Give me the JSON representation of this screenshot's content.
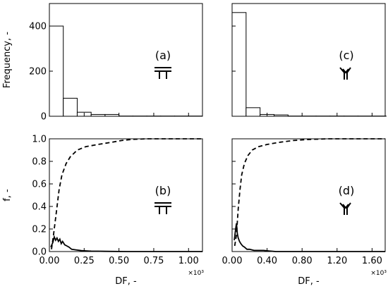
{
  "chart_data": [
    {
      "id": "a",
      "type": "bar",
      "panel_label": "(a)",
      "icon": "t-junction-icon",
      "ylabel": "Frequency, -",
      "xlim": [
        0,
        1100
      ],
      "ylim": [
        0,
        500
      ],
      "yticks": [
        0,
        200,
        400
      ],
      "bin_width": 100,
      "bins": [
        {
          "x0": 0,
          "value": 400
        },
        {
          "x0": 100,
          "value": 80
        },
        {
          "x0": 200,
          "value": 18
        },
        {
          "x0": 300,
          "value": 8
        },
        {
          "x0": 400,
          "value": 8
        },
        {
          "x0": 500,
          "value": 1
        },
        {
          "x0": 600,
          "value": 1
        },
        {
          "x0": 700,
          "value": 1
        },
        {
          "x0": 800,
          "value": 1
        },
        {
          "x0": 900,
          "value": 1
        },
        {
          "x0": 1000,
          "value": 1
        }
      ]
    },
    {
      "id": "b",
      "type": "line",
      "panel_label": "(b)",
      "icon": "t-junction-icon",
      "ylabel": "f, -",
      "xlabel": "DF, -",
      "x_scale_label": "×10³",
      "xlim": [
        0,
        1100
      ],
      "ylim": [
        0,
        1.0
      ],
      "xticks": [
        0,
        250,
        500,
        750,
        1000
      ],
      "xtick_labels": [
        "0.00",
        "0.25",
        "0.50",
        "0.75",
        "1.00"
      ],
      "yticks": [
        0,
        0.2,
        0.4,
        0.6,
        0.8,
        1.0
      ],
      "ytick_labels": [
        "0.0",
        "0.2",
        "0.4",
        "0.6",
        "0.8",
        "1.0"
      ],
      "series": [
        {
          "style": "dashed",
          "values": [
            [
              15,
              0.02
            ],
            [
              30,
              0.15
            ],
            [
              50,
              0.35
            ],
            [
              70,
              0.55
            ],
            [
              90,
              0.68
            ],
            [
              120,
              0.78
            ],
            [
              150,
              0.84
            ],
            [
              200,
              0.9
            ],
            [
              260,
              0.93
            ],
            [
              350,
              0.95
            ],
            [
              450,
              0.97
            ],
            [
              520,
              0.985
            ],
            [
              600,
              0.995
            ],
            [
              700,
              1.0
            ],
            [
              1100,
              1.0
            ]
          ]
        },
        {
          "style": "solid",
          "values": [
            [
              10,
              0.04
            ],
            [
              25,
              0.08
            ],
            [
              35,
              0.13
            ],
            [
              45,
              0.1
            ],
            [
              55,
              0.12
            ],
            [
              65,
              0.09
            ],
            [
              75,
              0.11
            ],
            [
              85,
              0.07
            ],
            [
              95,
              0.09
            ],
            [
              110,
              0.06
            ],
            [
              125,
              0.05
            ],
            [
              140,
              0.04
            ],
            [
              160,
              0.02
            ],
            [
              190,
              0.015
            ],
            [
              230,
              0.008
            ],
            [
              300,
              0.004
            ],
            [
              400,
              0.002
            ],
            [
              550,
              0.0
            ],
            [
              1100,
              0.0
            ]
          ]
        }
      ]
    },
    {
      "id": "c",
      "type": "bar",
      "panel_label": "(c)",
      "icon": "y-junction-icon",
      "xlim": [
        0,
        1750
      ],
      "ylim": [
        0,
        500
      ],
      "yticks": [
        0,
        200,
        400
      ],
      "bin_width": 160,
      "bins": [
        {
          "x0": 0,
          "value": 460
        },
        {
          "x0": 160,
          "value": 38
        },
        {
          "x0": 320,
          "value": 8
        },
        {
          "x0": 480,
          "value": 6
        },
        {
          "x0": 640,
          "value": 1
        },
        {
          "x0": 800,
          "value": 1
        },
        {
          "x0": 960,
          "value": 1
        },
        {
          "x0": 1120,
          "value": 1
        },
        {
          "x0": 1280,
          "value": 1
        },
        {
          "x0": 1440,
          "value": 1
        },
        {
          "x0": 1600,
          "value": 1
        }
      ]
    },
    {
      "id": "d",
      "type": "line",
      "panel_label": "(d)",
      "icon": "y-junction-icon",
      "xlabel": "DF, -",
      "x_scale_label": "×10³",
      "xlim": [
        0,
        1750
      ],
      "ylim": [
        0,
        1.0
      ],
      "xticks": [
        0,
        400,
        800,
        1200,
        1600
      ],
      "xtick_labels": [
        "0.00",
        "0.40",
        "0.80",
        "1.20",
        "1.60"
      ],
      "yticks": [
        0,
        0.2,
        0.4,
        0.6,
        0.8,
        1.0
      ],
      "series": [
        {
          "style": "dashed",
          "values": [
            [
              30,
              0.05
            ],
            [
              50,
              0.15
            ],
            [
              70,
              0.38
            ],
            [
              90,
              0.55
            ],
            [
              110,
              0.68
            ],
            [
              140,
              0.78
            ],
            [
              180,
              0.85
            ],
            [
              230,
              0.9
            ],
            [
              300,
              0.93
            ],
            [
              400,
              0.95
            ],
            [
              550,
              0.97
            ],
            [
              700,
              0.985
            ],
            [
              900,
              0.995
            ],
            [
              1100,
              1.0
            ],
            [
              1750,
              1.0
            ]
          ]
        },
        {
          "style": "solid",
          "values": [
            [
              25,
              0.1
            ],
            [
              40,
              0.2
            ],
            [
              50,
              0.25
            ],
            [
              60,
              0.16
            ],
            [
              70,
              0.12
            ],
            [
              85,
              0.09
            ],
            [
              100,
              0.07
            ],
            [
              120,
              0.05
            ],
            [
              140,
              0.04
            ],
            [
              170,
              0.02
            ],
            [
              200,
              0.02
            ],
            [
              250,
              0.01
            ],
            [
              300,
              0.01
            ],
            [
              360,
              0.01
            ],
            [
              420,
              0.005
            ],
            [
              500,
              0.0
            ],
            [
              1750,
              0.0
            ]
          ]
        }
      ]
    }
  ]
}
